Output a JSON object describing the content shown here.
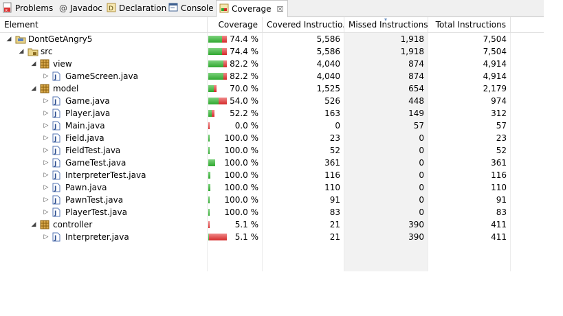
{
  "tabs": [
    {
      "label": "Problems",
      "icon": "problems-icon",
      "active": false
    },
    {
      "label": "Javadoc",
      "icon": "javadoc-icon",
      "active": false
    },
    {
      "label": "Declaration",
      "icon": "declaration-icon",
      "active": false
    },
    {
      "label": "Console",
      "icon": "console-icon",
      "active": false
    },
    {
      "label": "Coverage",
      "icon": "coverage-icon",
      "active": true,
      "close": "☒"
    }
  ],
  "columns": [
    "Element",
    "Coverage",
    "Covered Instructio...",
    "Missed Instructions",
    "Total Instructions"
  ],
  "rows": [
    {
      "name": "DontGetAngry5",
      "depth": 0,
      "icon": "project-icon",
      "expand": "expanded",
      "coverage": "74.4 %",
      "covered": "5,586",
      "missed": "1,918",
      "total": "7,504",
      "cov_ratio": 0.744,
      "size_ratio": 1.0
    },
    {
      "name": "src",
      "depth": 1,
      "icon": "source-folder-icon",
      "expand": "expanded",
      "coverage": "74.4 %",
      "covered": "5,586",
      "missed": "1,918",
      "total": "7,504",
      "cov_ratio": 0.744,
      "size_ratio": 1.0
    },
    {
      "name": "view",
      "depth": 2,
      "icon": "package-icon",
      "expand": "expanded",
      "coverage": "82.2 %",
      "covered": "4,040",
      "missed": "874",
      "total": "4,914",
      "cov_ratio": 0.822,
      "size_ratio": 1.0
    },
    {
      "name": "GameScreen.java",
      "depth": 3,
      "icon": "java-file-icon",
      "expand": "collapsed",
      "coverage": "82.2 %",
      "covered": "4,040",
      "missed": "874",
      "total": "4,914",
      "cov_ratio": 0.822,
      "size_ratio": 1.0
    },
    {
      "name": "model",
      "depth": 2,
      "icon": "package-icon",
      "expand": "expanded",
      "coverage": "70.0 %",
      "covered": "1,525",
      "missed": "654",
      "total": "2,179",
      "cov_ratio": 0.7,
      "size_ratio": 0.44
    },
    {
      "name": "Game.java",
      "depth": 3,
      "icon": "java-file-icon",
      "expand": "collapsed",
      "coverage": "54.0 %",
      "covered": "526",
      "missed": "448",
      "total": "974",
      "cov_ratio": 0.54,
      "size_ratio": 1.0
    },
    {
      "name": "Player.java",
      "depth": 3,
      "icon": "java-file-icon",
      "expand": "collapsed",
      "coverage": "52.2 %",
      "covered": "163",
      "missed": "149",
      "total": "312",
      "cov_ratio": 0.522,
      "size_ratio": 0.32
    },
    {
      "name": "Main.java",
      "depth": 3,
      "icon": "java-file-icon",
      "expand": "collapsed",
      "coverage": "0.0 %",
      "covered": "0",
      "missed": "57",
      "total": "57",
      "cov_ratio": 0.0,
      "size_ratio": 0.06
    },
    {
      "name": "Field.java",
      "depth": 3,
      "icon": "java-file-icon",
      "expand": "collapsed",
      "coverage": "100.0 %",
      "covered": "23",
      "missed": "0",
      "total": "23",
      "cov_ratio": 1.0,
      "size_ratio": 0.02
    },
    {
      "name": "FieldTest.java",
      "depth": 3,
      "icon": "java-file-icon",
      "expand": "collapsed",
      "coverage": "100.0 %",
      "covered": "52",
      "missed": "0",
      "total": "52",
      "cov_ratio": 1.0,
      "size_ratio": 0.05
    },
    {
      "name": "GameTest.java",
      "depth": 3,
      "icon": "java-file-icon",
      "expand": "collapsed",
      "coverage": "100.0 %",
      "covered": "361",
      "missed": "0",
      "total": "361",
      "cov_ratio": 1.0,
      "size_ratio": 0.37
    },
    {
      "name": "InterpreterTest.java",
      "depth": 3,
      "icon": "java-file-icon",
      "expand": "collapsed",
      "coverage": "100.0 %",
      "covered": "116",
      "missed": "0",
      "total": "116",
      "cov_ratio": 1.0,
      "size_ratio": 0.12
    },
    {
      "name": "Pawn.java",
      "depth": 3,
      "icon": "java-file-icon",
      "expand": "collapsed",
      "coverage": "100.0 %",
      "covered": "110",
      "missed": "0",
      "total": "110",
      "cov_ratio": 1.0,
      "size_ratio": 0.11
    },
    {
      "name": "PawnTest.java",
      "depth": 3,
      "icon": "java-file-icon",
      "expand": "collapsed",
      "coverage": "100.0 %",
      "covered": "91",
      "missed": "0",
      "total": "91",
      "cov_ratio": 1.0,
      "size_ratio": 0.09
    },
    {
      "name": "PlayerTest.java",
      "depth": 3,
      "icon": "java-file-icon",
      "expand": "collapsed",
      "coverage": "100.0 %",
      "covered": "83",
      "missed": "0",
      "total": "83",
      "cov_ratio": 1.0,
      "size_ratio": 0.085
    },
    {
      "name": "controller",
      "depth": 2,
      "icon": "package-icon",
      "expand": "expanded",
      "coverage": "5.1 %",
      "covered": "21",
      "missed": "390",
      "total": "411",
      "cov_ratio": 0.051,
      "size_ratio": 0.08
    },
    {
      "name": "Interpreter.java",
      "depth": 3,
      "icon": "java-file-icon",
      "expand": "collapsed",
      "coverage": "5.1 %",
      "covered": "21",
      "missed": "390",
      "total": "411",
      "cov_ratio": 0.051,
      "size_ratio": 1.0
    }
  ],
  "colors": {
    "covered": "#2fa82f",
    "missed": "#d42a2a"
  }
}
